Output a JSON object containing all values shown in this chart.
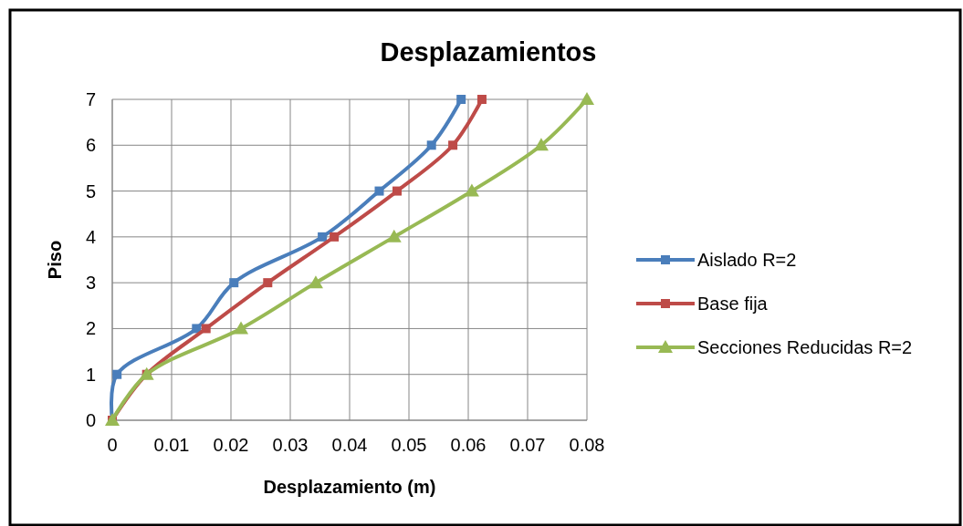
{
  "chart_data": {
    "type": "line",
    "title": "Desplazamientos",
    "xlabel": "Desplazamiento (m)",
    "ylabel": "Piso",
    "xlim": [
      0,
      0.08
    ],
    "xticks": [
      0,
      0.01,
      0.02,
      0.03,
      0.04,
      0.05,
      0.06,
      0.07,
      0.08
    ],
    "ylim": [
      0,
      7
    ],
    "yticks": [
      0,
      1,
      2,
      3,
      4,
      5,
      6,
      7
    ],
    "grid": true,
    "legend": "right",
    "line_style": "solid",
    "series": [
      {
        "name": "Aislado R=2",
        "color": "#4a7ebb",
        "marker": "square",
        "x": [
          0,
          0.0008,
          0.0142,
          0.0205,
          0.0354,
          0.045,
          0.0538,
          0.0588
        ],
        "values": [
          0,
          1,
          2,
          3,
          4,
          5,
          6,
          7
        ]
      },
      {
        "name": "Base fija",
        "color": "#be4b48",
        "marker": "square",
        "x": [
          0,
          0.0058,
          0.0158,
          0.0262,
          0.0374,
          0.048,
          0.0574,
          0.0623
        ],
        "values": [
          0,
          1,
          2,
          3,
          4,
          5,
          6,
          7
        ]
      },
      {
        "name": "Secciones Reducidas R=2",
        "color": "#98b954",
        "marker": "triangle",
        "x": [
          0,
          0.0058,
          0.0217,
          0.0343,
          0.0475,
          0.0606,
          0.0723,
          0.08
        ],
        "values": [
          0,
          1,
          2,
          3,
          4,
          5,
          6,
          7
        ]
      }
    ]
  }
}
